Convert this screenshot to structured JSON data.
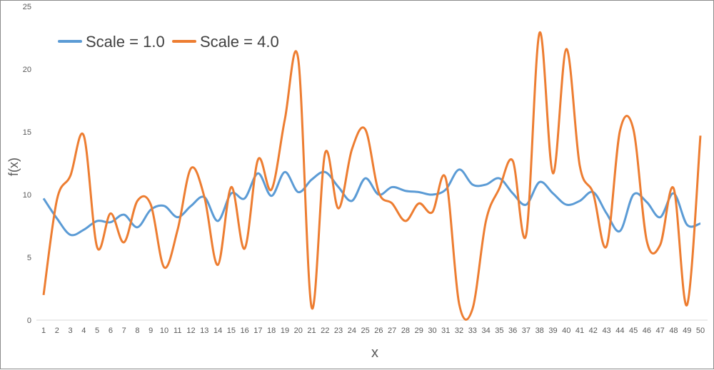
{
  "chart_data": {
    "type": "line",
    "title": "",
    "xlabel": "x",
    "ylabel": "f(x)",
    "x": [
      1,
      2,
      3,
      4,
      5,
      6,
      7,
      8,
      9,
      10,
      11,
      12,
      13,
      14,
      15,
      16,
      17,
      18,
      19,
      20,
      21,
      22,
      23,
      24,
      25,
      26,
      27,
      28,
      29,
      30,
      31,
      32,
      33,
      34,
      35,
      36,
      37,
      38,
      39,
      40,
      41,
      42,
      43,
      44,
      45,
      46,
      47,
      48,
      49,
      50
    ],
    "ylim": [
      0,
      25
    ],
    "yticks": [
      0,
      5,
      10,
      15,
      20,
      25
    ],
    "grid": false,
    "legend": "top-left",
    "series": [
      {
        "name": "Scale = 1.0",
        "color": "#5b9bd5",
        "values": [
          9.7,
          8.1,
          6.8,
          7.2,
          7.9,
          7.8,
          8.4,
          7.4,
          8.8,
          9.1,
          8.2,
          9.1,
          9.8,
          7.9,
          10.1,
          9.7,
          11.7,
          9.9,
          11.8,
          10.2,
          11.2,
          11.8,
          10.6,
          9.5,
          11.3,
          10.0,
          10.6,
          10.3,
          10.2,
          10.0,
          10.4,
          12.0,
          10.8,
          10.8,
          11.3,
          10.1,
          9.2,
          11.0,
          10.1,
          9.2,
          9.5,
          10.2,
          8.5,
          7.1,
          10.0,
          9.4,
          8.2,
          10.1,
          7.6,
          7.7
        ]
      },
      {
        "name": "Scale = 4.0",
        "color": "#ed7d31",
        "values": [
          2.0,
          9.6,
          11.5,
          14.7,
          5.8,
          8.5,
          6.2,
          9.5,
          9.2,
          4.2,
          7.2,
          12.1,
          9.8,
          4.4,
          10.6,
          5.7,
          12.8,
          10.4,
          16.0,
          20.8,
          1.0,
          13.3,
          8.9,
          13.6,
          15.2,
          10.2,
          9.3,
          7.9,
          9.3,
          8.6,
          11.3,
          1.3,
          0.9,
          7.9,
          10.5,
          12.7,
          6.8,
          22.9,
          11.7,
          21.6,
          12.3,
          10.1,
          5.9,
          15.1,
          15.2,
          6.3,
          6.0,
          10.5,
          1.2,
          14.7
        ]
      }
    ]
  }
}
